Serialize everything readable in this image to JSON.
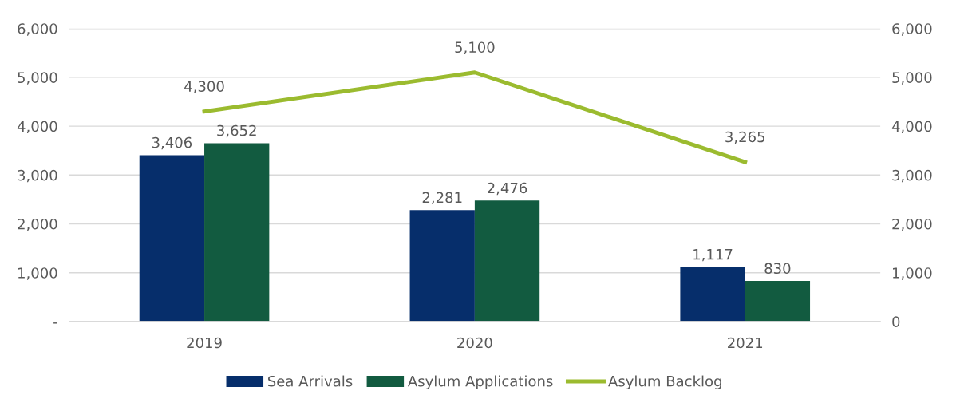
{
  "chart_data": {
    "type": "bar",
    "categories": [
      "2019",
      "2020",
      "2021"
    ],
    "series": [
      {
        "name": "Sea Arrivals",
        "color": "#062e6b",
        "values": [
          3406,
          2281,
          1117
        ],
        "value_labels": [
          "3,406",
          "2,281",
          "1,117"
        ]
      },
      {
        "name": "Asylum Applications",
        "color": "#125b40",
        "values": [
          3652,
          2476,
          830
        ],
        "value_labels": [
          "3,652",
          "2,476",
          "830"
        ]
      },
      {
        "name": "Asylum Backlog",
        "type": "line",
        "color": "#9bbb2f",
        "values": [
          4300,
          5100,
          3265
        ],
        "value_labels": [
          "4,300",
          "5,100",
          "3,265"
        ]
      }
    ],
    "ylim": [
      0,
      6000
    ],
    "yticks": [
      {
        "value": 0,
        "label": "-"
      },
      {
        "value": 1000,
        "label": "1,000"
      },
      {
        "value": 2000,
        "label": "2,000"
      },
      {
        "value": 3000,
        "label": "3,000"
      },
      {
        "value": 4000,
        "label": "4,000"
      },
      {
        "value": 5000,
        "label": "5,000"
      },
      {
        "value": 6000,
        "label": "6,000"
      }
    ],
    "y2lim": [
      0,
      6000
    ],
    "y2ticks": [
      0,
      {
        "value": 1000,
        "label": "1,000"
      },
      {
        "value": 2000,
        "label": "2,000"
      },
      {
        "value": 3000,
        "label": "3,000"
      },
      {
        "value": 4000,
        "label": "4,000"
      },
      {
        "value": 5000,
        "label": "5,000"
      },
      {
        "value": 6000,
        "label": "6,000"
      }
    ],
    "grid": "y",
    "legend": "bottom",
    "marker": "none",
    "line_style": "solid"
  }
}
